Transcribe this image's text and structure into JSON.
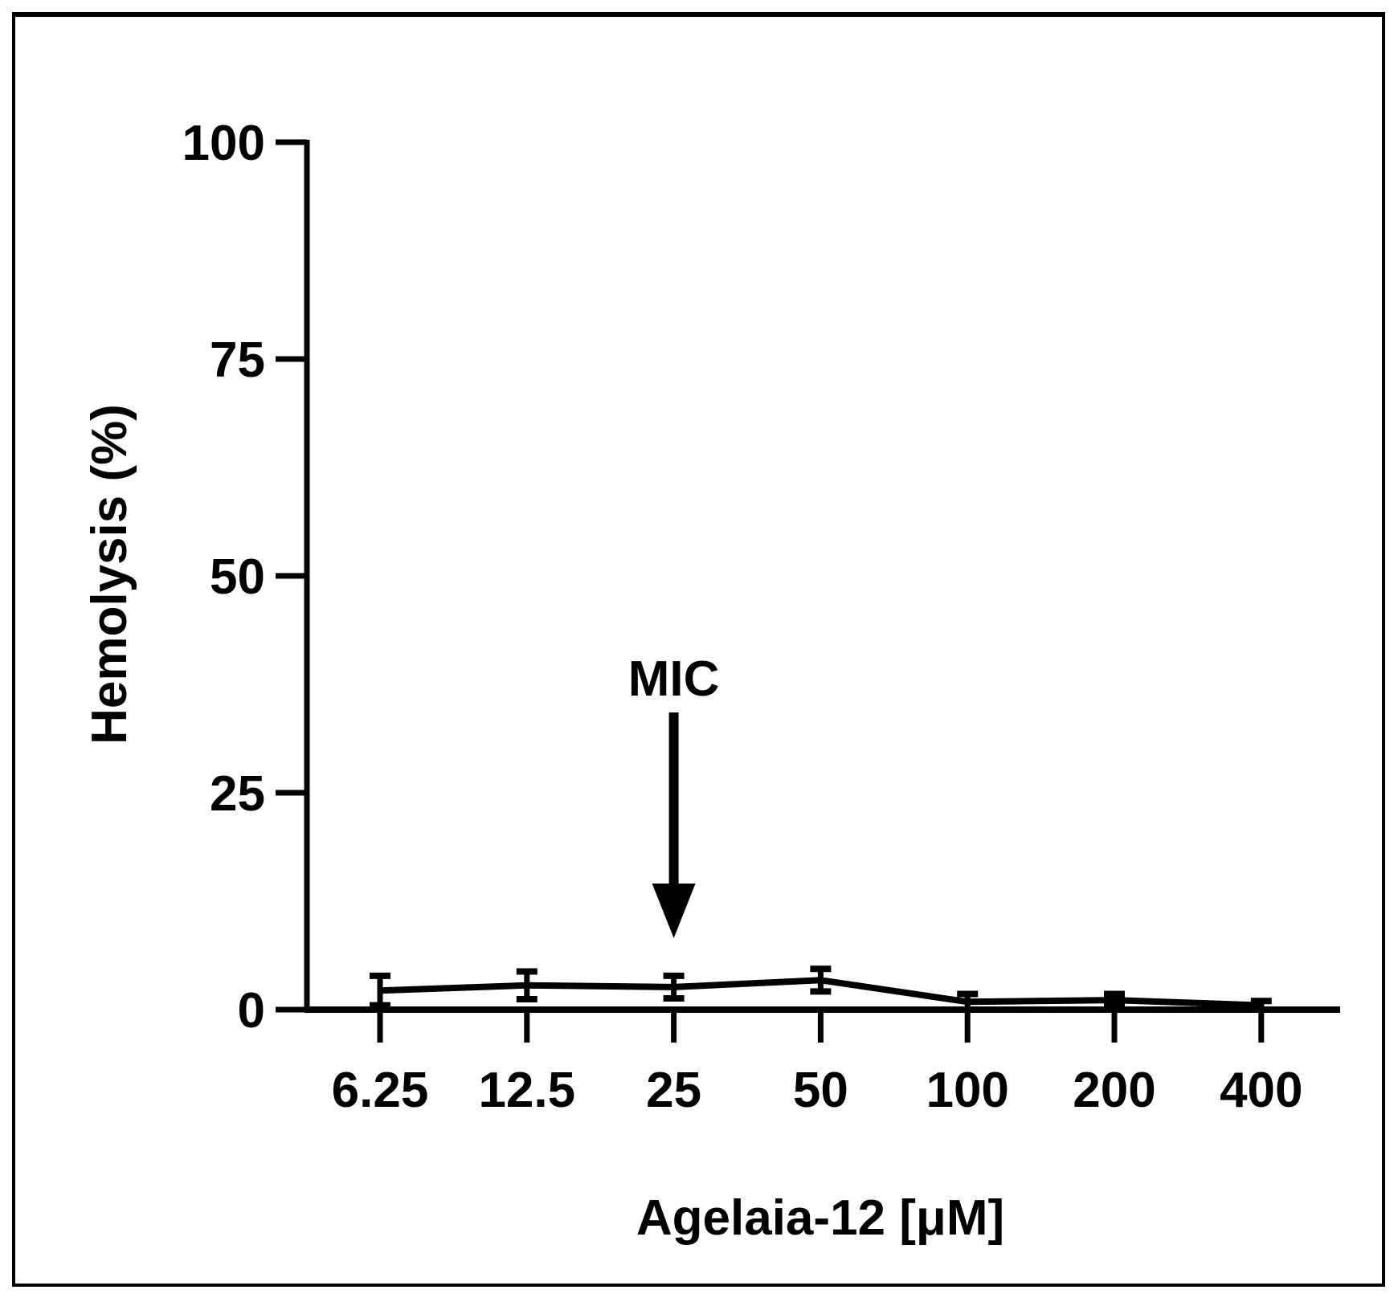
{
  "chart_data": {
    "type": "line",
    "title": "",
    "xlabel": "Agelaia-12 [μM]",
    "ylabel": "Hemolysis (%)",
    "categories": [
      "6.25",
      "12.5",
      "25",
      "50",
      "100",
      "200",
      "400"
    ],
    "series": [
      {
        "name": "Agelaia-12",
        "values": [
          2.2,
          2.8,
          2.6,
          3.4,
          0.9,
          1.1,
          0.5
        ],
        "error": [
          1.7,
          1.6,
          1.3,
          1.3,
          0.9,
          0.7,
          0.5
        ],
        "color": "#000000"
      }
    ],
    "ylim": [
      0,
      100
    ],
    "yticks": [
      "0",
      "25",
      "50",
      "75",
      "100"
    ],
    "grid": false,
    "legend": null,
    "annotations": [
      {
        "text": "MIC",
        "type": "arrow-down",
        "category": "25"
      }
    ]
  }
}
